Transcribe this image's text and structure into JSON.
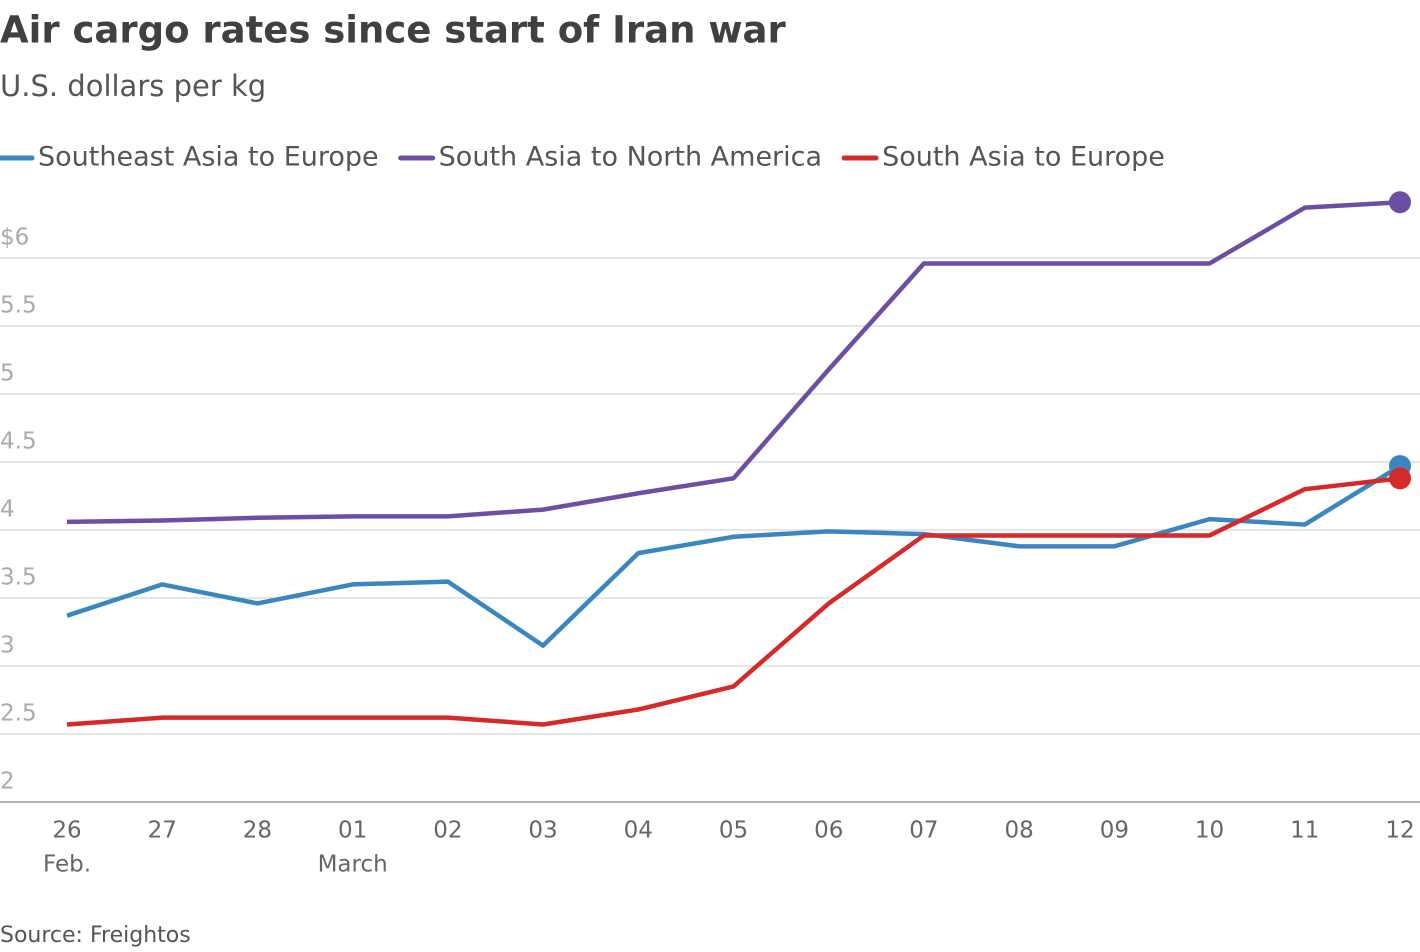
{
  "chart_data": {
    "type": "line",
    "title": "Air cargo rates since start of Iran war",
    "subtitle": "U.S. dollars per kg",
    "source": "Source: Freightos",
    "categories": [
      "26",
      "27",
      "28",
      "01",
      "02",
      "03",
      "04",
      "05",
      "06",
      "07",
      "08",
      "09",
      "10",
      "11",
      "12"
    ],
    "category_sublabels": [
      "Feb.",
      null,
      null,
      "March",
      null,
      null,
      null,
      null,
      null,
      null,
      null,
      null,
      null,
      null,
      null
    ],
    "series": [
      {
        "name": "Southeast Asia to Europe",
        "color": "#3a87c0",
        "values": [
          3.37,
          3.6,
          3.46,
          3.6,
          3.62,
          3.15,
          3.83,
          3.95,
          3.99,
          3.97,
          3.88,
          3.88,
          4.08,
          4.04,
          4.47
        ]
      },
      {
        "name": "South Asia to North America",
        "color": "#6c4fa3",
        "values": [
          4.06,
          4.07,
          4.09,
          4.1,
          4.1,
          4.15,
          4.27,
          4.38,
          5.18,
          5.96,
          5.96,
          5.96,
          5.96,
          6.37,
          6.41
        ]
      },
      {
        "name": "South Asia to Europe",
        "color": "#d62a2a",
        "values": [
          2.57,
          2.62,
          2.62,
          2.62,
          2.62,
          2.57,
          2.68,
          2.85,
          3.46,
          3.96,
          3.96,
          3.96,
          3.96,
          4.3,
          4.38
        ]
      }
    ],
    "ylim": [
      2,
      6.5
    ],
    "yticks": [
      2,
      2.5,
      3,
      3.5,
      4,
      4.5,
      5,
      5.5,
      {
        "value": 6,
        "label": "$6"
      }
    ],
    "grid": true
  }
}
